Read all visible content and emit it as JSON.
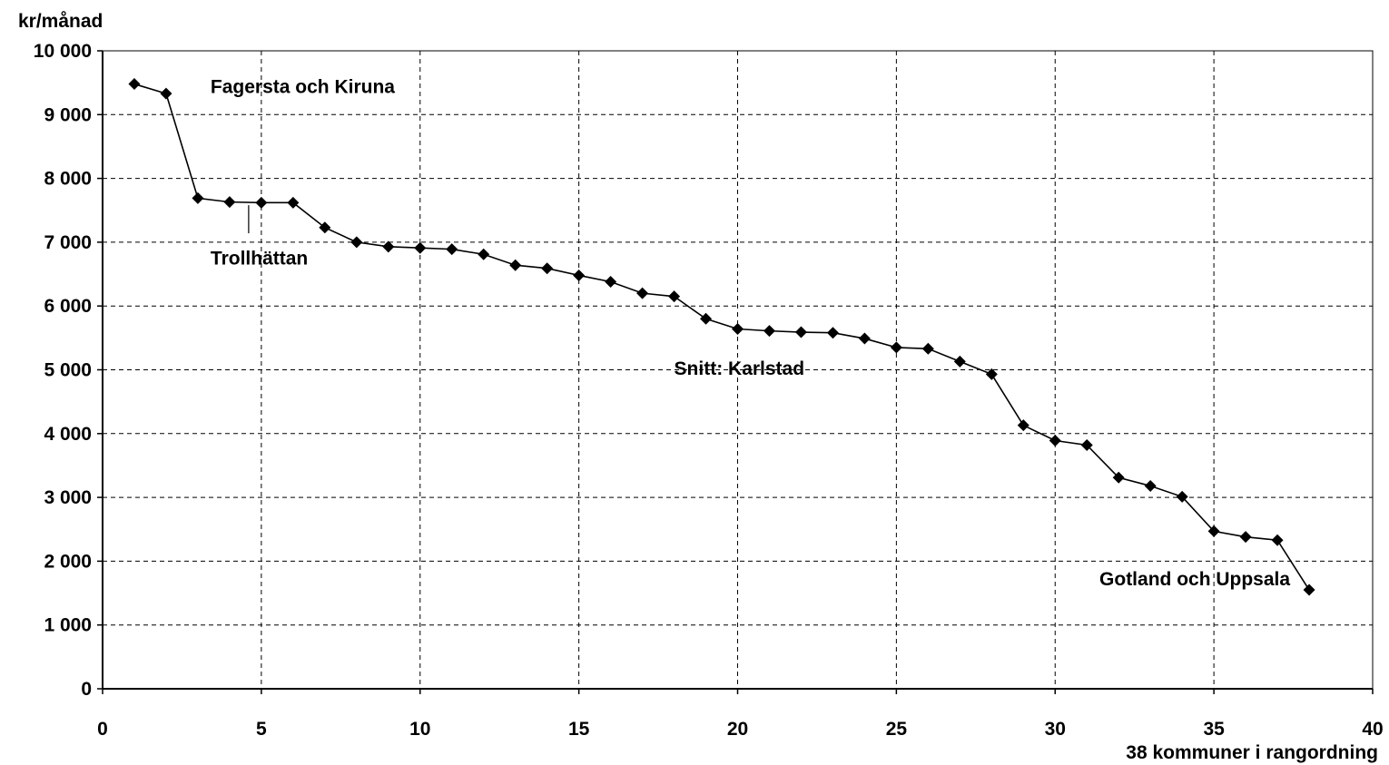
{
  "chart_data": {
    "type": "line",
    "title": "",
    "xlabel": "38 kommuner i rangordning",
    "ylabel": "kr/månad",
    "xlim": [
      0,
      40
    ],
    "ylim": [
      0,
      10000
    ],
    "x_ticks": [
      0,
      5,
      10,
      15,
      20,
      25,
      30,
      35,
      40
    ],
    "x_tick_labels": [
      "0",
      "5",
      "10",
      "15",
      "20",
      "25",
      "30",
      "35",
      "40"
    ],
    "y_ticks": [
      0,
      1000,
      2000,
      3000,
      4000,
      5000,
      6000,
      7000,
      8000,
      9000,
      10000
    ],
    "y_tick_labels": [
      "0",
      "1 000",
      "2 000",
      "3 000",
      "4 000",
      "5 000",
      "6 000",
      "7 000",
      "8 000",
      "9 000",
      "10 000"
    ],
    "grid": true,
    "legend": "none",
    "marker": "diamond",
    "line_color": "#000000",
    "series": [
      {
        "x": [
          1,
          2,
          3,
          4,
          5,
          6,
          7,
          8,
          9,
          10,
          11,
          12,
          13,
          14,
          15,
          16,
          17,
          18,
          19,
          20,
          21,
          22,
          23,
          24,
          25,
          26,
          27,
          28,
          29,
          30,
          31,
          32,
          33,
          34,
          35,
          36,
          37,
          38
        ],
        "values": [
          9480,
          9330,
          7690,
          7630,
          7620,
          7620,
          7230,
          7000,
          6930,
          6910,
          6890,
          6810,
          6640,
          6590,
          6480,
          6380,
          6200,
          6150,
          5800,
          5640,
          5610,
          5590,
          5580,
          5490,
          5350,
          5330,
          5130,
          4930,
          4130,
          3890,
          3820,
          3310,
          3180,
          3010,
          2470,
          2380,
          2330,
          1550
        ]
      }
    ],
    "annotations": [
      {
        "text": "Fagersta och Kiruna",
        "x": 3.4,
        "y": 9340,
        "anchor": "start"
      },
      {
        "text": "Trollhättan",
        "x": 3.4,
        "y": 6650,
        "anchor": "start"
      },
      {
        "text": "Snitt: Karlstad",
        "x": 18.0,
        "y": 4920,
        "anchor": "start"
      },
      {
        "text": "Gotland och Uppsala",
        "x": 37.4,
        "y": 1620,
        "anchor": "end"
      }
    ],
    "pointer": {
      "x": 4.6,
      "y_from": 7580,
      "y_to": 7140
    }
  }
}
